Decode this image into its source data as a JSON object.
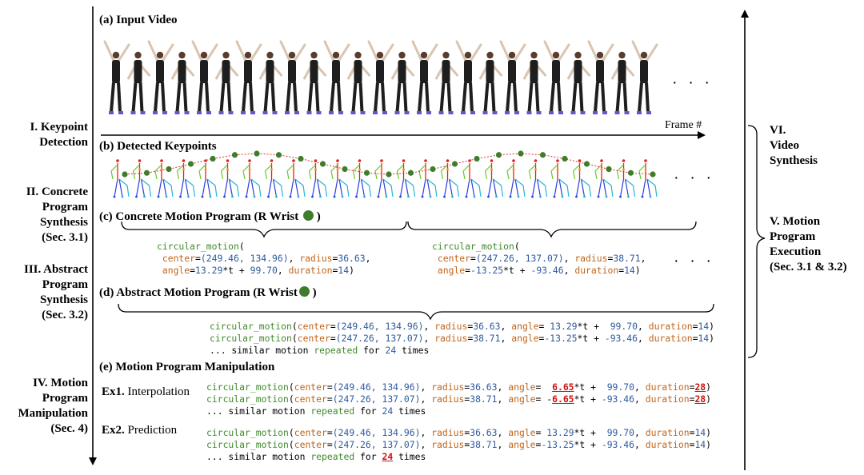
{
  "stages_left": [
    {
      "lines": [
        "I. Keypoint",
        "Detection"
      ]
    },
    {
      "lines": [
        "II. Concrete",
        "Program",
        "Synthesis",
        "(Sec. 3.1)"
      ]
    },
    {
      "lines": [
        "III. Abstract",
        "Program",
        "Synthesis",
        "(Sec. 3.2)"
      ]
    },
    {
      "lines": [
        "IV. Motion",
        "Program",
        "Manipulation",
        "(Sec. 4)"
      ]
    }
  ],
  "stages_right": [
    {
      "lines": [
        "VI.",
        "Video",
        "Synthesis"
      ]
    },
    {
      "lines": [
        "V. Motion",
        "Program",
        "Execution",
        "(Sec. 3.1 & 3.2)"
      ]
    }
  ],
  "panels": {
    "a_title": "(a) Input Video",
    "frame_label": "Frame #",
    "b_title": "(b) Detected Keypoints",
    "c_title": "(c) Concrete Motion Program (R Wrist",
    "d_title": "(d) Abstract Motion Program (R Wrist",
    "e_title": "(e) Motion Program Manipulation",
    "close_paren": ")",
    "ellipsis": "· · ·",
    "ex1_bold": "Ex1.",
    "ex1_label": "Interpolation",
    "ex2_bold": "Ex2.",
    "ex2_label": "Prediction"
  },
  "code": {
    "fn": "circular_motion",
    "center_kw": "center",
    "radius_kw": "radius",
    "angle_kw": "angle",
    "duration_kw": "duration",
    "c1": {
      "center": "(249.46, 134.96)",
      "radius": "36.63",
      "angle_a": "13.29",
      "angle_b": "99.70",
      "duration": "14"
    },
    "c2": {
      "center": "(247.26, 137.07)",
      "radius": "38.71",
      "angle_a": "-13.25",
      "angle_b": "-93.46",
      "duration": "14"
    },
    "repeat_prefix": "... similar motion",
    "repeated_word": "repeated",
    "for_word": "for",
    "repeat_count": "24",
    "times_word": "times",
    "ex1_angle1": "6.65",
    "ex1_angle2": "6.65",
    "ex1_duration": "28"
  },
  "colors": {
    "keyword": "#c0641a",
    "number": "#2f5a9e",
    "function": "#3f8a2b",
    "highlight": "#cc1111",
    "wrist_dot": "#3f7d2a"
  }
}
